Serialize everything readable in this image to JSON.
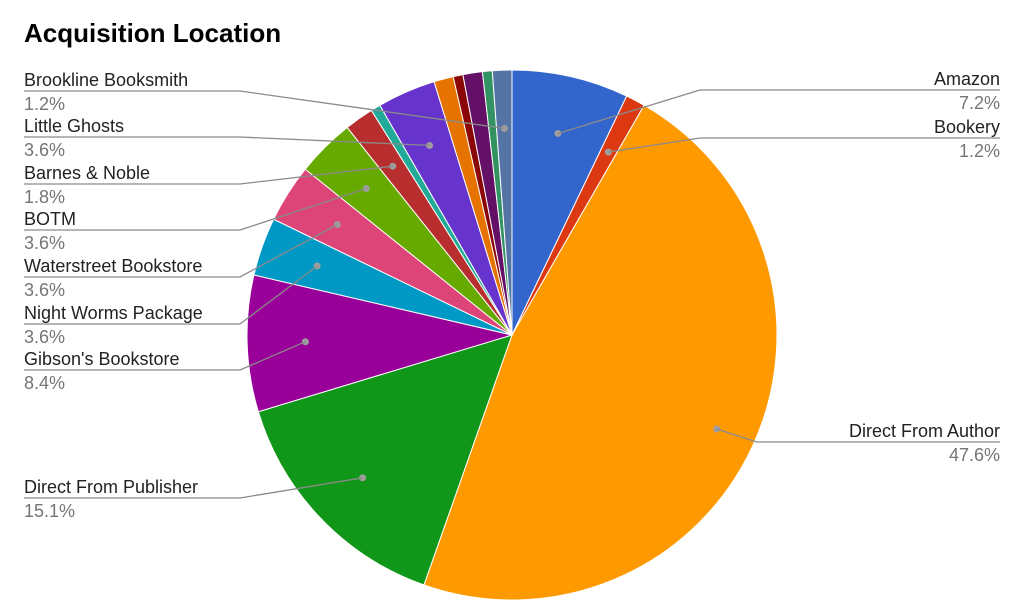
{
  "chart_data": {
    "type": "pie",
    "title": "Acquisition Location",
    "slices": [
      {
        "label": "Amazon",
        "value": 7.2,
        "value_label": "7.2%",
        "color": "#3366cc",
        "labeled": true,
        "side": "right"
      },
      {
        "label": "Bookery",
        "value": 1.2,
        "value_label": "1.2%",
        "color": "#dc3912",
        "labeled": true,
        "side": "right"
      },
      {
        "label": "Direct From Author",
        "value": 47.6,
        "value_label": "47.6%",
        "color": "#ff9900",
        "labeled": true,
        "side": "right"
      },
      {
        "label": "Direct From Publisher",
        "value": 15.1,
        "value_label": "15.1%",
        "color": "#109618",
        "labeled": true,
        "side": "left"
      },
      {
        "label": "Gibson's Bookstore",
        "value": 8.4,
        "value_label": "8.4%",
        "color": "#990099",
        "labeled": true,
        "side": "left"
      },
      {
        "label": "Night Worms Package",
        "value": 3.6,
        "value_label": "3.6%",
        "color": "#0099c6",
        "labeled": true,
        "side": "left"
      },
      {
        "label": "Waterstreet Bookstore",
        "value": 3.6,
        "value_label": "3.6%",
        "color": "#dd4477",
        "labeled": true,
        "side": "left"
      },
      {
        "label": "BOTM",
        "value": 3.6,
        "value_label": "3.6%",
        "color": "#66aa00",
        "labeled": true,
        "side": "left"
      },
      {
        "label": "Barnes & Noble",
        "value": 1.8,
        "value_label": "1.8%",
        "color": "#b82e2e",
        "labeled": true,
        "side": "left"
      },
      {
        "label": "",
        "value": 0.6,
        "value_label": "",
        "color": "#22aa99",
        "labeled": false,
        "side": "left"
      },
      {
        "label": "Little Ghosts",
        "value": 3.6,
        "value_label": "3.6%",
        "color": "#6633cc",
        "labeled": true,
        "side": "left"
      },
      {
        "label": "",
        "value": 1.2,
        "value_label": "",
        "color": "#e67300",
        "labeled": false,
        "side": "left"
      },
      {
        "label": "",
        "value": 0.6,
        "value_label": "",
        "color": "#8b0707",
        "labeled": false,
        "side": "left"
      },
      {
        "label": "",
        "value": 1.2,
        "value_label": "",
        "color": "#651067",
        "labeled": false,
        "side": "left"
      },
      {
        "label": "",
        "value": 0.6,
        "value_label": "",
        "color": "#329262",
        "labeled": false,
        "side": "left"
      },
      {
        "label": "Brookline Booksmith",
        "value": 1.2,
        "value_label": "1.2%",
        "color": "#5574a6",
        "labeled": true,
        "side": "left"
      }
    ]
  }
}
